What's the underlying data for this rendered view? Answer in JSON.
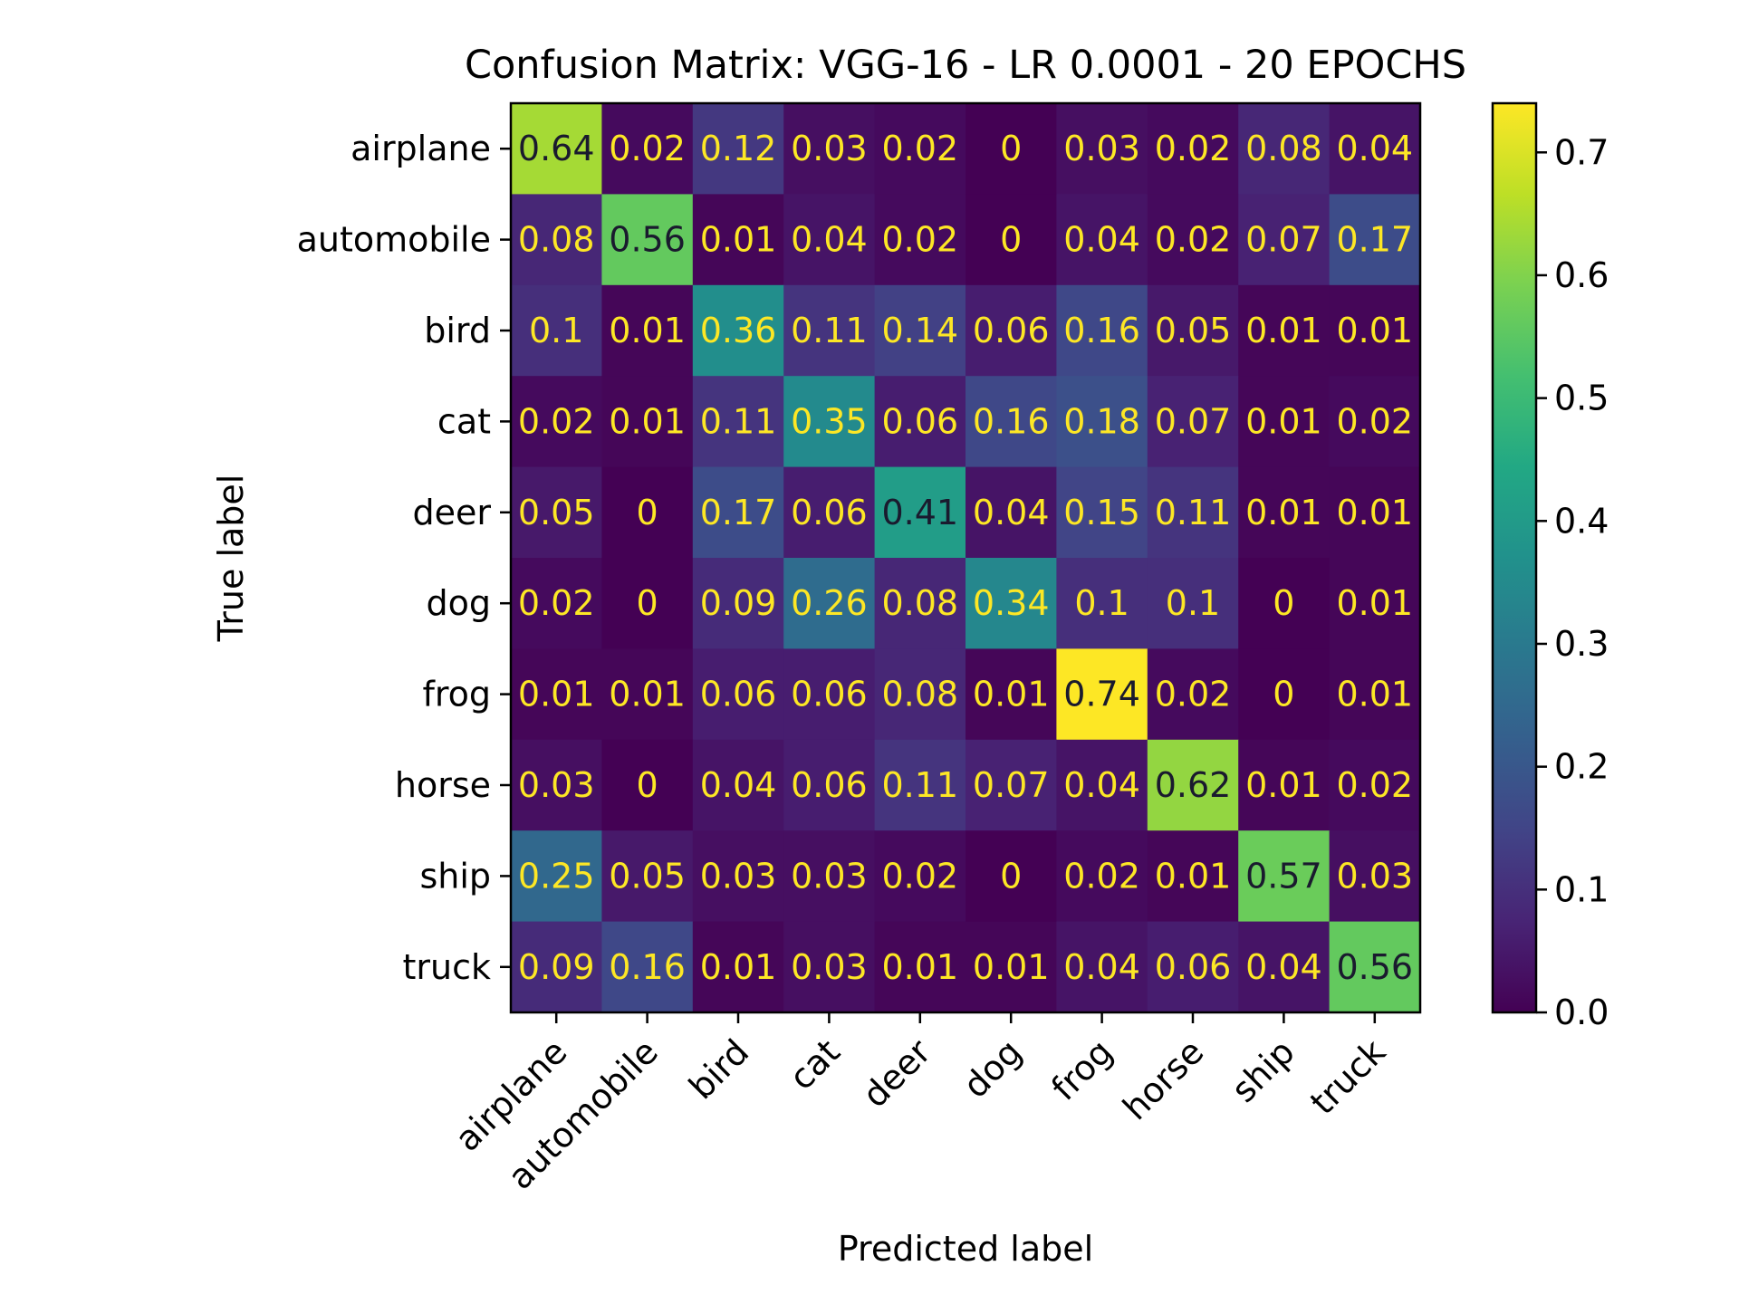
{
  "chart_data": {
    "type": "heatmap",
    "title": "Confusion Matrix: VGG-16 - LR 0.0001 - 20 EPOCHS",
    "xlabel": "Predicted label",
    "ylabel": "True label",
    "x_categories": [
      "airplane",
      "automobile",
      "bird",
      "cat",
      "deer",
      "dog",
      "frog",
      "horse",
      "ship",
      "truck"
    ],
    "y_categories": [
      "airplane",
      "automobile",
      "bird",
      "cat",
      "deer",
      "dog",
      "frog",
      "horse",
      "ship",
      "truck"
    ],
    "values": [
      [
        0.64,
        0.02,
        0.12,
        0.03,
        0.02,
        0,
        0.03,
        0.02,
        0.08,
        0.04
      ],
      [
        0.08,
        0.56,
        0.01,
        0.04,
        0.02,
        0,
        0.04,
        0.02,
        0.07,
        0.17
      ],
      [
        0.1,
        0.01,
        0.36,
        0.11,
        0.14,
        0.06,
        0.16,
        0.05,
        0.01,
        0.01
      ],
      [
        0.02,
        0.01,
        0.11,
        0.35,
        0.06,
        0.16,
        0.18,
        0.07,
        0.01,
        0.02
      ],
      [
        0.05,
        0,
        0.17,
        0.06,
        0.41,
        0.04,
        0.15,
        0.11,
        0.01,
        0.01
      ],
      [
        0.02,
        0,
        0.09,
        0.26,
        0.08,
        0.34,
        0.1,
        0.1,
        0,
        0.01
      ],
      [
        0.01,
        0.01,
        0.06,
        0.06,
        0.08,
        0.01,
        0.74,
        0.02,
        0,
        0.01
      ],
      [
        0.03,
        0,
        0.04,
        0.06,
        0.11,
        0.07,
        0.04,
        0.62,
        0.01,
        0.02
      ],
      [
        0.25,
        0.05,
        0.03,
        0.03,
        0.02,
        0,
        0.02,
        0.01,
        0.57,
        0.03
      ],
      [
        0.09,
        0.16,
        0.01,
        0.03,
        0.01,
        0.01,
        0.04,
        0.06,
        0.04,
        0.56
      ]
    ],
    "colormap": "viridis",
    "color_range": [
      0.0,
      0.74
    ],
    "colorbar_ticks": [
      "0.0",
      "0.1",
      "0.2",
      "0.3",
      "0.4",
      "0.5",
      "0.6",
      "0.7"
    ],
    "grid": false
  }
}
